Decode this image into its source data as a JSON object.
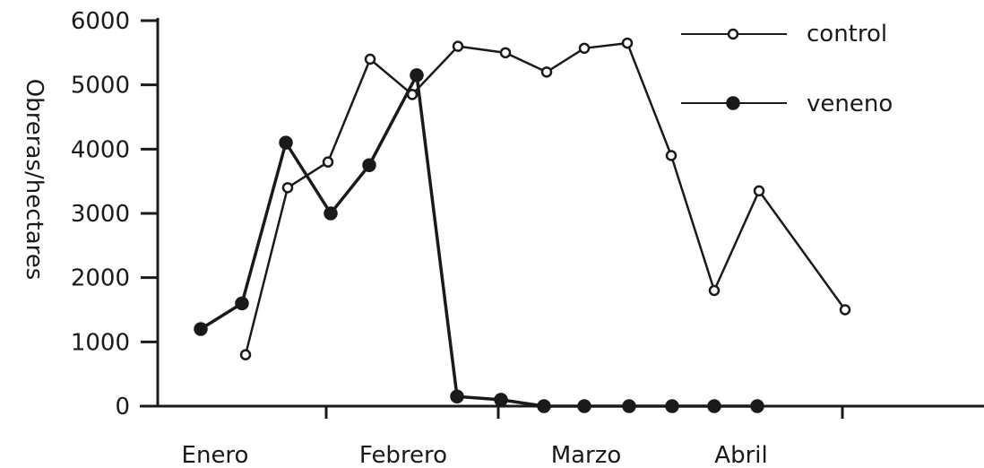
{
  "chart_data": {
    "type": "line",
    "ylabel": "Obreras/hectares",
    "xlabel": "",
    "ylim": [
      0,
      6000
    ],
    "y_ticks": [
      0,
      1000,
      2000,
      3000,
      4000,
      5000,
      6000
    ],
    "y_tick_labels": [
      "0",
      "1000",
      "2000",
      "3000",
      "4000",
      "5000",
      "6000"
    ],
    "x_tick_labels": [
      "Enero",
      "Febrero",
      "Marzo",
      "Abril"
    ],
    "legend_position": "top-right",
    "grid": false,
    "series": [
      {
        "name": "control",
        "marker": "open-circle",
        "color": "#1a1a1a",
        "points": [
          {
            "x": "early Jan",
            "y": 800
          },
          {
            "x": "mid Jan",
            "y": 3400
          },
          {
            "x": "late Jan",
            "y": 3800
          },
          {
            "x": "end Jan",
            "y": 5400
          },
          {
            "x": "early Feb",
            "y": 4850
          },
          {
            "x": "mid Feb",
            "y": 5600
          },
          {
            "x": "late Feb",
            "y": 5500
          },
          {
            "x": "early Mar",
            "y": 5200
          },
          {
            "x": "mid Mar",
            "y": 5570
          },
          {
            "x": "late Mar",
            "y": 5650
          },
          {
            "x": "early Apr",
            "y": 3900
          },
          {
            "x": "mid Apr",
            "y": 1800
          },
          {
            "x": "late Apr",
            "y": 3350
          },
          {
            "x": "end Apr",
            "y": 1500
          }
        ]
      },
      {
        "name": "veneno",
        "marker": "filled-circle",
        "color": "#1a1a1a",
        "points": [
          {
            "x": "early Jan",
            "y": 1200
          },
          {
            "x": "mid Jan",
            "y": 1600
          },
          {
            "x": "late Jan",
            "y": 4100
          },
          {
            "x": "end Jan",
            "y": 3000
          },
          {
            "x": "early Feb",
            "y": 3750
          },
          {
            "x": "mid Feb",
            "y": 5150
          },
          {
            "x": "late Feb",
            "y": 150
          },
          {
            "x": "early Mar",
            "y": 100
          },
          {
            "x": "mid Mar",
            "y": 0
          },
          {
            "x": "late Mar",
            "y": 0
          },
          {
            "x": "early Apr",
            "y": 0
          },
          {
            "x": "mid Apr",
            "y": 0
          },
          {
            "x": "late Apr",
            "y": 0
          },
          {
            "x": "end Apr",
            "y": 0
          }
        ]
      }
    ]
  }
}
